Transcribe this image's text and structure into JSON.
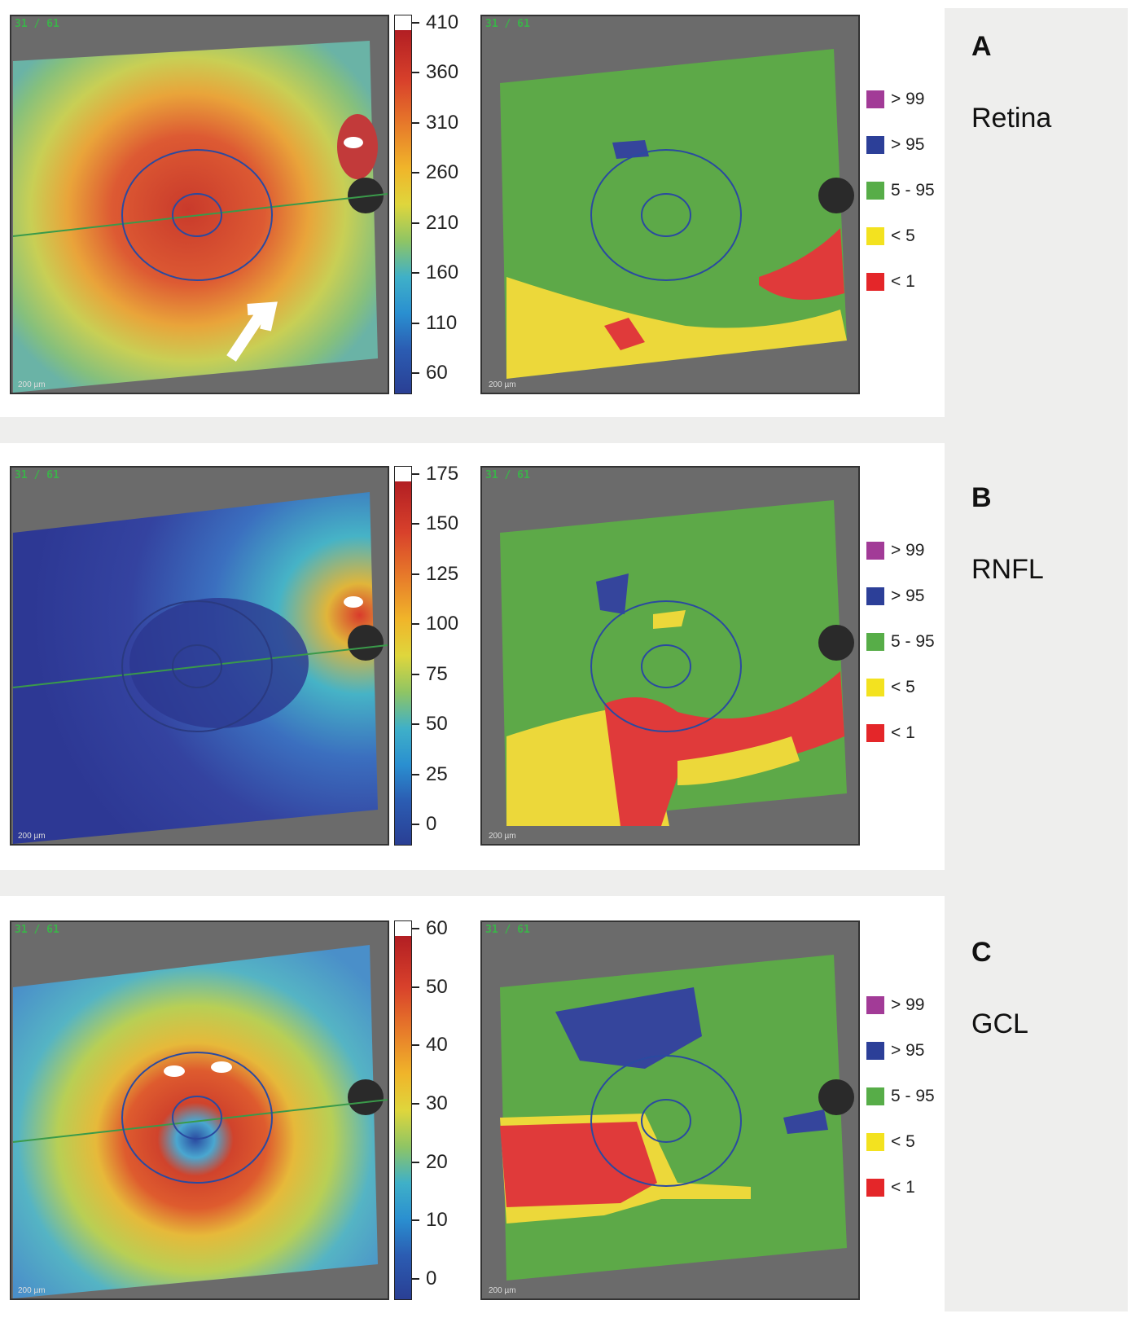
{
  "panels": [
    {
      "letter": "A",
      "name": "Retina",
      "scan_label": "31 / 61",
      "scale_label": "200 µm",
      "colorbar_ticks": [
        "410",
        "360",
        "310",
        "260",
        "210",
        "160",
        "110",
        "60"
      ]
    },
    {
      "letter": "B",
      "name": "RNFL",
      "scan_label": "31 / 61",
      "scale_label": "200 µm",
      "colorbar_ticks": [
        "175",
        "150",
        "125",
        "100",
        "75",
        "50",
        "25",
        "0"
      ]
    },
    {
      "letter": "C",
      "name": "GCL",
      "scan_label": "31 / 61",
      "scale_label": "200 µm",
      "colorbar_ticks": [
        "60",
        "50",
        "40",
        "30",
        "20",
        "10",
        "0"
      ]
    }
  ],
  "legend": [
    {
      "label": "> 99",
      "color": "#a23b97"
    },
    {
      "label": "> 95",
      "color": "#2c3f98"
    },
    {
      "label": "5 - 95",
      "color": "#57ad48"
    },
    {
      "label": "< 5",
      "color": "#f3e21f"
    },
    {
      "label": "< 1",
      "color": "#e42629"
    }
  ]
}
